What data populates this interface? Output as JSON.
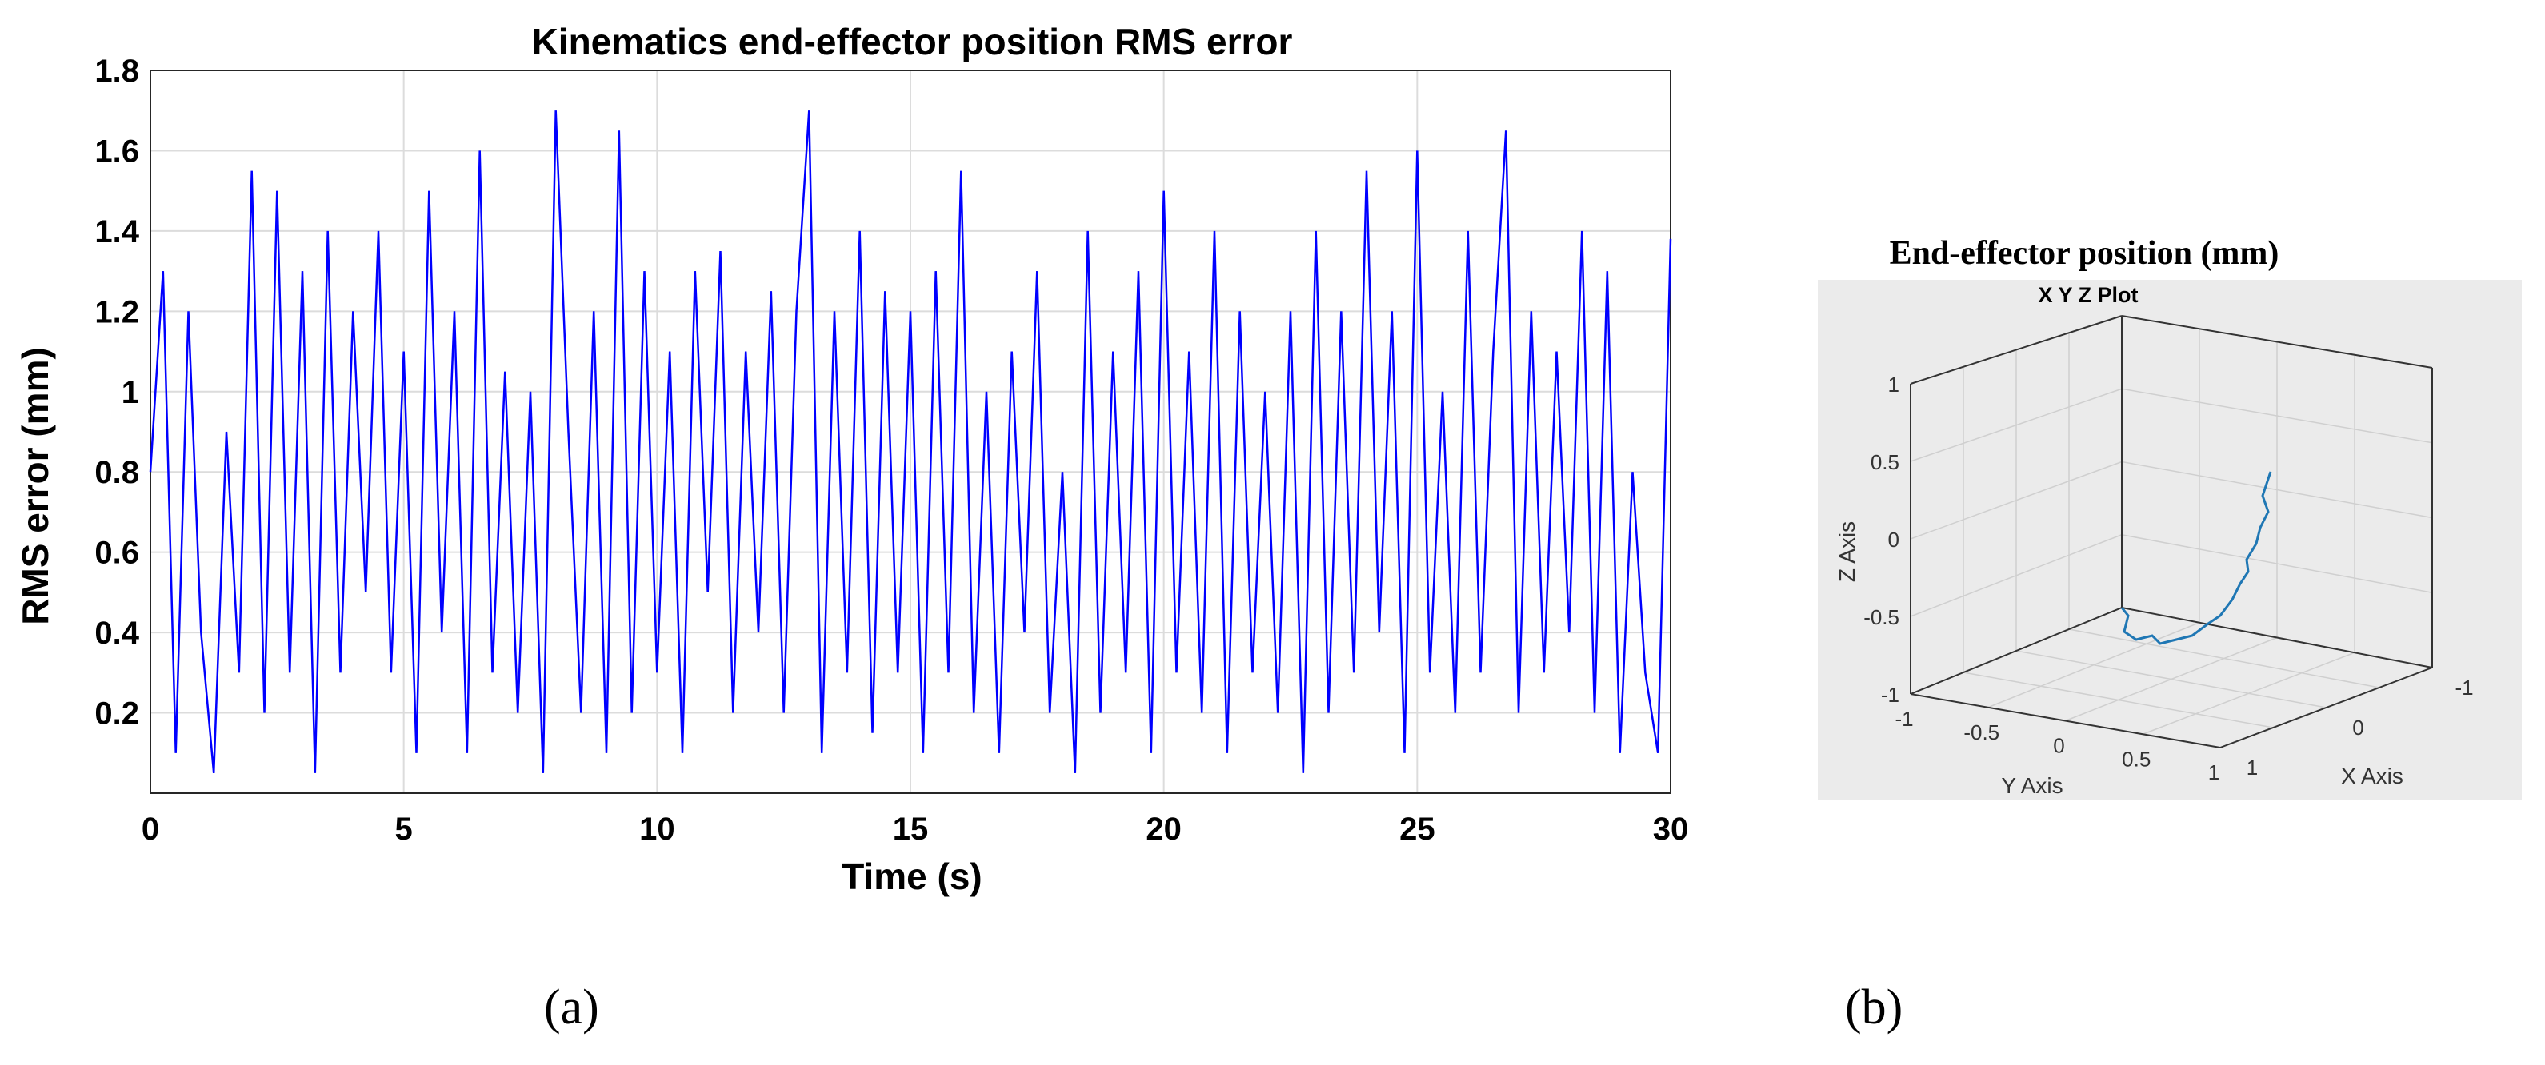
{
  "chart_data": [
    {
      "type": "line",
      "panel": "(a)",
      "title": "Kinematics end-effector position RMS error",
      "xlabel": "Time (s)",
      "ylabel": "RMS error (mm)",
      "xlim": [
        0,
        30
      ],
      "ylim": [
        0,
        1.8
      ],
      "xticks": [
        "0",
        "5",
        "10",
        "15",
        "20",
        "25",
        "30"
      ],
      "yticks": [
        "0.2",
        "0.4",
        "0.6",
        "0.8",
        "1",
        "1.2",
        "1.4",
        "1.6",
        "1.8"
      ],
      "grid": true,
      "line_color": "#0000ff",
      "series": [
        {
          "x": [
            0.0,
            0.25,
            0.5,
            0.75,
            1.0,
            1.25,
            1.5,
            1.75,
            2.0,
            2.25,
            2.5,
            2.75,
            3.0,
            3.25,
            3.5,
            3.75,
            4.0,
            4.25,
            4.5,
            4.75,
            5.0,
            5.25,
            5.5,
            5.75,
            6.0,
            6.25,
            6.5,
            6.75,
            7.0,
            7.25,
            7.5,
            7.75,
            8.0,
            8.25,
            8.5,
            8.75,
            9.0,
            9.25,
            9.5,
            9.75,
            10.0,
            10.25,
            10.5,
            10.75,
            11.0,
            11.25,
            11.5,
            11.75,
            12.0,
            12.25,
            12.5,
            12.75,
            13.0,
            13.25,
            13.5,
            13.75,
            14.0,
            14.25,
            14.5,
            14.75,
            15.0,
            15.25,
            15.5,
            15.75,
            16.0,
            16.25,
            16.5,
            16.75,
            17.0,
            17.25,
            17.5,
            17.75,
            18.0,
            18.25,
            18.5,
            18.75,
            19.0,
            19.25,
            19.5,
            19.75,
            20.0,
            20.25,
            20.5,
            20.75,
            21.0,
            21.25,
            21.5,
            21.75,
            22.0,
            22.25,
            22.5,
            22.75,
            23.0,
            23.25,
            23.5,
            23.75,
            24.0,
            24.25,
            24.5,
            24.75,
            25.0,
            25.25,
            25.5,
            25.75,
            26.0,
            26.25,
            26.5,
            26.75,
            27.0,
            27.25,
            27.5,
            27.75,
            28.0,
            28.25,
            28.5,
            28.75,
            29.0,
            29.25,
            29.5,
            29.75,
            30.0
          ],
          "y": [
            0.8,
            1.3,
            0.1,
            1.2,
            0.4,
            0.05,
            0.9,
            0.3,
            1.55,
            0.2,
            1.5,
            0.3,
            1.3,
            0.05,
            1.4,
            0.3,
            1.2,
            0.5,
            1.4,
            0.3,
            1.1,
            0.1,
            1.5,
            0.4,
            1.2,
            0.1,
            1.6,
            0.3,
            1.05,
            0.2,
            1.0,
            0.05,
            1.7,
            0.9,
            0.2,
            1.2,
            0.1,
            1.65,
            0.2,
            1.3,
            0.3,
            1.1,
            0.1,
            1.3,
            0.5,
            1.35,
            0.2,
            1.1,
            0.4,
            1.25,
            0.2,
            1.2,
            1.7,
            0.1,
            1.2,
            0.3,
            1.4,
            0.15,
            1.25,
            0.3,
            1.2,
            0.1,
            1.3,
            0.3,
            1.55,
            0.2,
            1.0,
            0.1,
            1.1,
            0.4,
            1.3,
            0.2,
            0.8,
            0.05,
            1.4,
            0.2,
            1.1,
            0.3,
            1.3,
            0.1,
            1.5,
            0.3,
            1.1,
            0.2,
            1.4,
            0.1,
            1.2,
            0.3,
            1.0,
            0.2,
            1.2,
            0.05,
            1.4,
            0.2,
            1.2,
            0.3,
            1.55,
            0.4,
            1.2,
            0.1,
            1.6,
            0.3,
            1.0,
            0.2,
            1.4,
            0.3,
            1.1,
            1.65,
            0.2,
            1.2,
            0.3,
            1.1,
            0.4,
            1.4,
            0.2,
            1.3,
            0.1,
            0.8,
            0.3,
            0.1,
            1.38
          ]
        }
      ]
    },
    {
      "type": "line3d",
      "panel": "(b)",
      "title": "X Y Z Plot",
      "outer_title": "End-effector position (mm)",
      "xlabel": "X Axis",
      "ylabel": "Y Axis",
      "zlabel": "Z Axis",
      "xlim": [
        -1,
        1
      ],
      "ylim": [
        -1,
        1
      ],
      "zlim": [
        -1,
        1
      ],
      "xticks": [
        "-1",
        "0",
        "1"
      ],
      "yticks": [
        "-1",
        "-0.5",
        "0",
        "0.5",
        "1"
      ],
      "zticks": [
        "-1",
        "-0.5",
        "0",
        "0.5",
        "1"
      ],
      "grid": true,
      "line_color": "#1f77b4",
      "background": "#ebebeb"
    }
  ],
  "labels": {
    "panel_a": "(a)",
    "panel_b": "(b)"
  }
}
